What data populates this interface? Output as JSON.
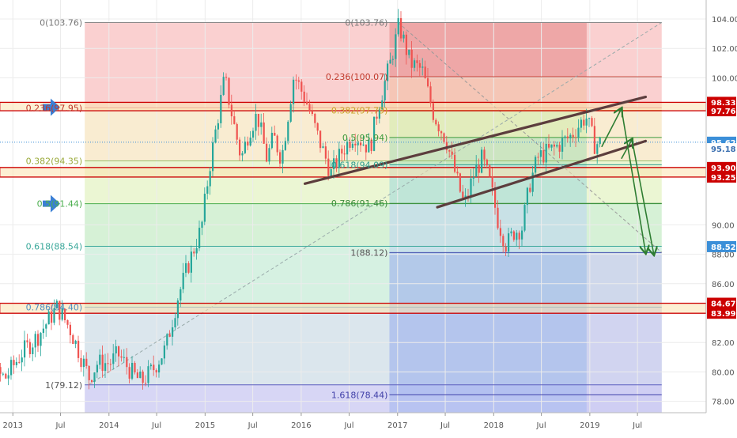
{
  "chart_data": {
    "type": "line",
    "title": "",
    "xlabel": "",
    "ylabel": "",
    "x_range": [
      "2012-06-01",
      "2019-10-01"
    ],
    "ylim": [
      77,
      105
    ],
    "grid": true,
    "colors": {
      "candle_up": "#26a69a",
      "candle_down": "#ef5350",
      "fib_zone_red": "#f8c0c0",
      "fib_zone_green": "#c8ecc8",
      "fib_zone_blue": "#c4e2f4",
      "fib_zone_gray": "#e3e3e3",
      "fib_zone_purple": "#c9c8f2",
      "support_zone": "#fde3b0",
      "zone_border": "#cc0000",
      "channel": "#5c3d3d",
      "projection_arrow": "#2e7d32",
      "marker_arrow": "#3a7fd5",
      "price_tag": "#cc0000",
      "current_price_tag": "#3b8fd8"
    },
    "x_ticks": [
      {
        "label": "2013",
        "date": "2013-01-01"
      },
      {
        "label": "Jul",
        "date": "2013-07-01"
      },
      {
        "label": "2014",
        "date": "2014-01-01"
      },
      {
        "label": "Jul",
        "date": "2014-07-01"
      },
      {
        "label": "2015",
        "date": "2015-01-01"
      },
      {
        "label": "Jul",
        "date": "2015-07-01"
      },
      {
        "label": "2016",
        "date": "2016-01-01"
      },
      {
        "label": "Jul",
        "date": "2016-07-01"
      },
      {
        "label": "2017",
        "date": "2017-01-01"
      },
      {
        "label": "Jul",
        "date": "2017-07-01"
      },
      {
        "label": "2018",
        "date": "2018-01-01"
      },
      {
        "label": "Jul",
        "date": "2018-07-01"
      },
      {
        "label": "2019",
        "date": "2019-01-01"
      },
      {
        "label": "Jul",
        "date": "2019-07-01"
      }
    ],
    "y_ticks": [
      {
        "label": "104.00",
        "value": 104
      },
      {
        "label": "102.00",
        "value": 102
      },
      {
        "label": "100.00",
        "value": 100
      },
      {
        "label": "90.00",
        "value": 90
      },
      {
        "label": "88.00",
        "value": 88
      },
      {
        "label": "86.00",
        "value": 86
      },
      {
        "label": "82.00",
        "value": 82
      },
      {
        "label": "80.00",
        "value": 80
      },
      {
        "label": "78.00",
        "value": 78
      }
    ],
    "price_tags": [
      {
        "label": "98.33",
        "value": 98.33,
        "style": "red"
      },
      {
        "label": "97.76",
        "value": 97.76,
        "style": "red"
      },
      {
        "label": "95.62",
        "value": 95.62,
        "style": "current"
      },
      {
        "label": "95.18",
        "value": 95.18,
        "style": "plain"
      },
      {
        "label": "93.90",
        "value": 93.9,
        "style": "red"
      },
      {
        "label": "93.25",
        "value": 93.25,
        "style": "red"
      },
      {
        "label": "88.52",
        "value": 88.52,
        "style": "blue"
      },
      {
        "label": "84.67",
        "value": 84.67,
        "style": "red"
      },
      {
        "label": "83.99",
        "value": 83.99,
        "style": "red"
      }
    ],
    "fib_retracement_1": {
      "start": "2013-10-01",
      "end": "2019-10-01",
      "levels": [
        {
          "label": "0(103.76)",
          "value": 103.76
        },
        {
          "label": "0.236(97.95)",
          "value": 97.95
        },
        {
          "label": "0.382(94.35)",
          "value": 94.35
        },
        {
          "label": "0.5(91.44)",
          "value": 91.44
        },
        {
          "label": "0.618(88.54)",
          "value": 88.54
        },
        {
          "label": "0.786(84.40)",
          "value": 84.4
        },
        {
          "label": "1(79.12)",
          "value": 79.12
        }
      ]
    },
    "fib_retracement_2": {
      "start": "2016-12-01",
      "end": "2019-10-01",
      "inner_end": "2018-12-20",
      "levels": [
        {
          "label": "0(103.76)",
          "value": 103.76
        },
        {
          "label": "0.236(100.07)",
          "value": 100.07
        },
        {
          "label": "0.382(97.79)",
          "value": 97.79
        },
        {
          "label": "0.5(95.94)",
          "value": 95.94
        },
        {
          "label": "0.618(94.09)",
          "value": 94.09
        },
        {
          "label": "0.786(91.46)",
          "value": 91.46
        },
        {
          "label": "1(88.12)",
          "value": 88.12
        },
        {
          "label": "1.618(78.44)",
          "value": 78.44
        }
      ]
    },
    "support_zones": [
      {
        "top": 98.33,
        "bottom": 97.76
      },
      {
        "top": 93.9,
        "bottom": 93.25
      },
      {
        "top": 84.67,
        "bottom": 83.99
      }
    ],
    "current_price": 95.62,
    "channel_lines": [
      {
        "x1": "2016-01-15",
        "y1": 92.8,
        "x2": "2019-08-01",
        "y2": 98.7
      },
      {
        "x1": "2017-06-01",
        "y1": 91.2,
        "x2": "2019-08-01",
        "y2": 95.7
      }
    ],
    "projection_arrows": [
      {
        "points": [
          [
            "2019-02-15",
            95.3
          ],
          [
            "2019-05-01",
            97.9
          ],
          [
            "2019-08-01",
            88.1
          ]
        ]
      },
      {
        "points": [
          [
            "2019-05-01",
            94.5
          ],
          [
            "2019-06-10",
            95.8
          ],
          [
            "2019-09-01",
            88.0
          ]
        ]
      }
    ],
    "marker_arrows": [
      98.0,
      91.44
    ],
    "series": [
      {
        "points": [
          [
            "2012-06-01",
            80.8
          ],
          [
            "2012-08-01",
            81.8
          ],
          [
            "2012-10-01",
            80.0
          ],
          [
            "2012-12-01",
            79.6
          ],
          [
            "2013-02-01",
            81.3
          ],
          [
            "2013-04-01",
            82.4
          ],
          [
            "2013-06-15",
            84.4
          ],
          [
            "2013-08-01",
            83.0
          ],
          [
            "2013-09-01",
            81.6
          ],
          [
            "2013-10-15",
            79.6
          ],
          [
            "2013-11-15",
            80.6
          ],
          [
            "2014-01-01",
            80.6
          ],
          [
            "2014-02-01",
            81.2
          ],
          [
            "2014-04-01",
            79.8
          ],
          [
            "2014-05-01",
            79.3
          ],
          [
            "2014-06-15",
            80.2
          ],
          [
            "2014-08-01",
            81.6
          ],
          [
            "2014-09-15",
            85.0
          ],
          [
            "2014-11-01",
            87.6
          ],
          [
            "2014-12-15",
            89.8
          ],
          [
            "2015-01-15",
            94.0
          ],
          [
            "2015-03-13",
            100.0
          ],
          [
            "2015-04-15",
            97.0
          ],
          [
            "2015-05-15",
            94.5
          ],
          [
            "2015-06-15",
            96.5
          ],
          [
            "2015-07-15",
            97.5
          ],
          [
            "2015-08-20",
            94.5
          ],
          [
            "2015-09-15",
            96.0
          ],
          [
            "2015-10-15",
            94.5
          ],
          [
            "2015-12-01",
            100.2
          ],
          [
            "2016-01-15",
            98.5
          ],
          [
            "2016-03-01",
            96.0
          ],
          [
            "2016-04-20",
            93.5
          ],
          [
            "2016-06-01",
            95.0
          ],
          [
            "2016-07-15",
            96.2
          ],
          [
            "2016-09-15",
            95.2
          ],
          [
            "2016-10-15",
            98.0
          ],
          [
            "2016-12-01",
            101.0
          ],
          [
            "2017-01-03",
            103.6
          ],
          [
            "2017-02-15",
            101.0
          ],
          [
            "2017-04-01",
            100.5
          ],
          [
            "2017-05-15",
            97.5
          ],
          [
            "2017-07-01",
            95.8
          ],
          [
            "2017-08-15",
            92.8
          ],
          [
            "2017-09-08",
            91.3
          ],
          [
            "2017-10-15",
            93.5
          ],
          [
            "2017-11-15",
            94.5
          ],
          [
            "2017-12-15",
            92.8
          ],
          [
            "2018-01-15",
            90.2
          ],
          [
            "2018-02-15",
            88.6
          ],
          [
            "2018-03-15",
            89.5
          ],
          [
            "2018-04-15",
            89.8
          ],
          [
            "2018-05-15",
            92.8
          ],
          [
            "2018-06-15",
            94.6
          ],
          [
            "2018-08-15",
            95.2
          ],
          [
            "2018-10-15",
            96.0
          ],
          [
            "2018-12-14",
            97.4
          ],
          [
            "2019-01-15",
            95.5
          ],
          [
            "2019-02-15",
            95.6
          ]
        ]
      }
    ]
  }
}
